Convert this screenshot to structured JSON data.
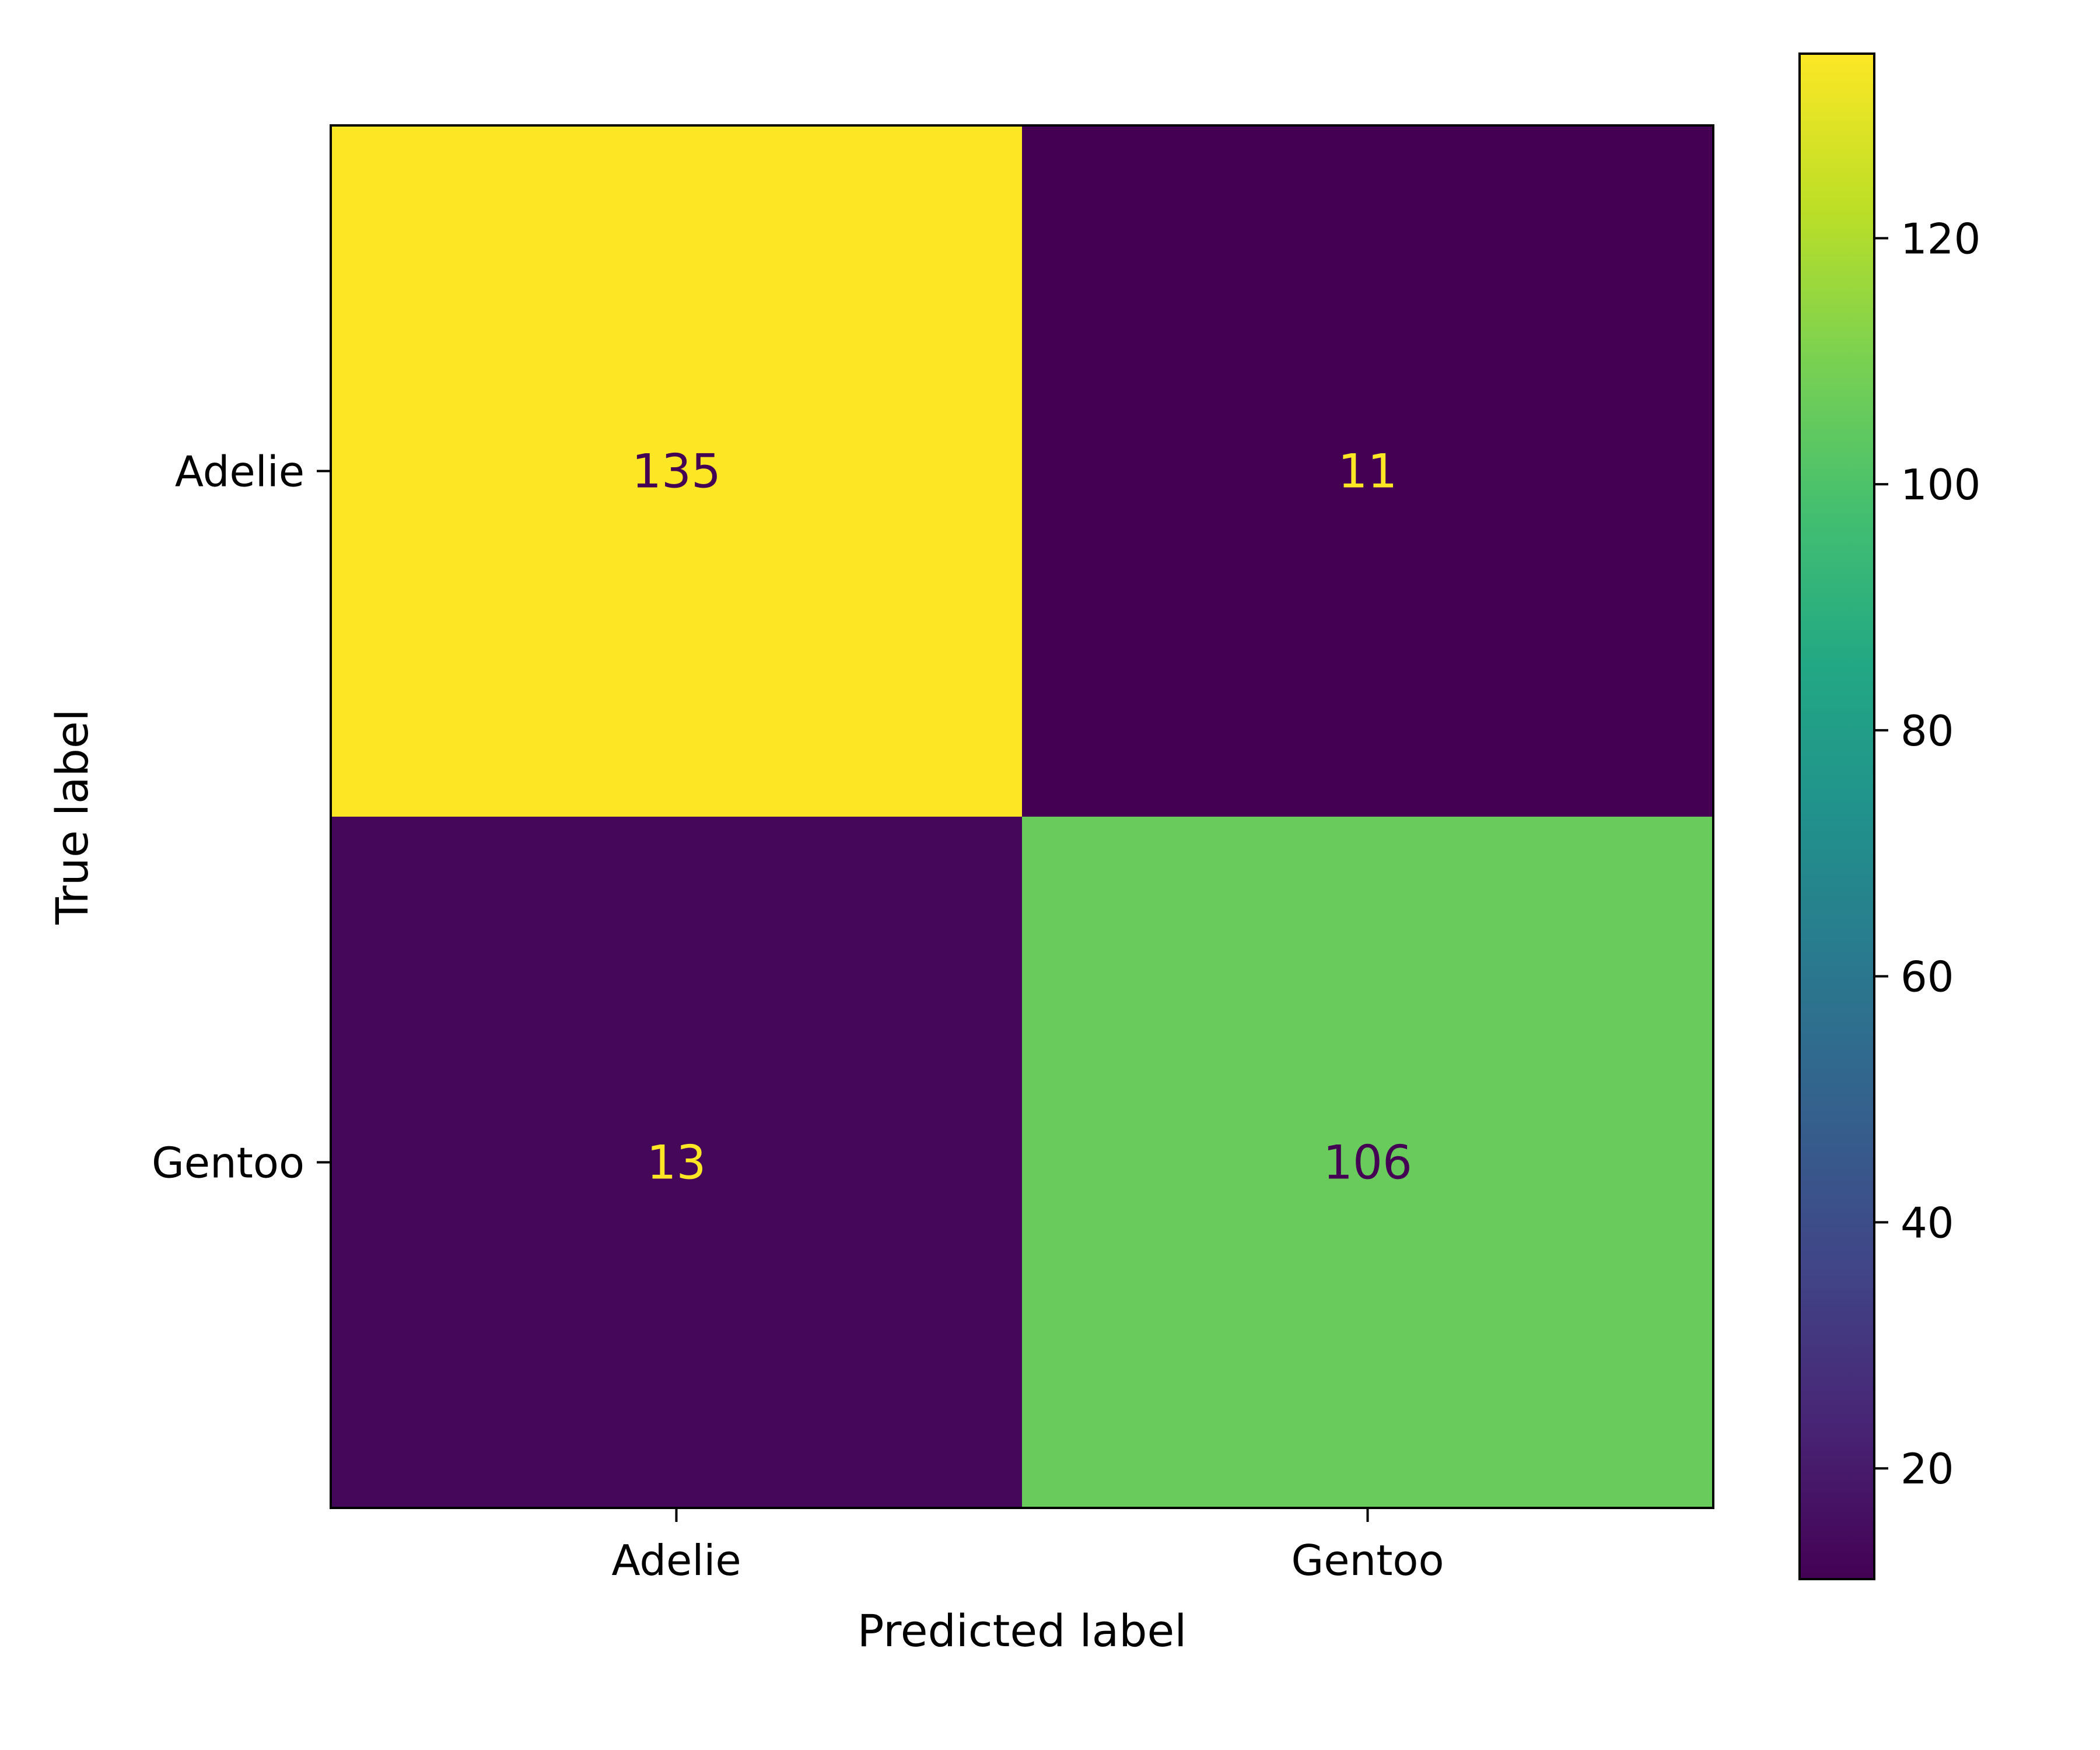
{
  "chart_data": {
    "type": "heatmap",
    "title": "",
    "xlabel": "Predicted label",
    "ylabel": "True label",
    "x_categories": [
      "Adelie",
      "Gentoo"
    ],
    "y_categories": [
      "Adelie",
      "Gentoo"
    ],
    "values": [
      [
        135,
        11
      ],
      [
        13,
        106
      ]
    ],
    "colormap": "viridis",
    "color_range": [
      11,
      135
    ],
    "colorbar": {
      "ticks": [
        20,
        40,
        60,
        80,
        100,
        120
      ],
      "tick_labels": [
        "20",
        "40",
        "60",
        "80",
        "100",
        "120"
      ]
    },
    "grid": false
  }
}
